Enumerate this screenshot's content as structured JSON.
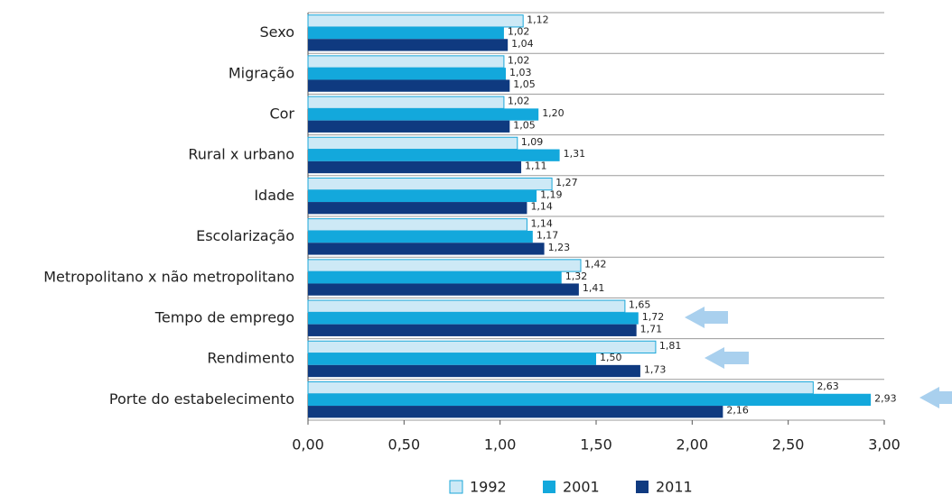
{
  "chart_data": {
    "type": "barh",
    "categories": [
      "Sexo",
      "Migração",
      "Cor",
      "Rural x urbano",
      "Idade",
      "Escolarização",
      "Metropolitano  x não metropolitano",
      "Tempo de emprego",
      "Rendimento",
      "Porte do estabelecimento"
    ],
    "series": [
      {
        "name": "1992",
        "color": "#cde9f6",
        "stroke": "#1aa7d9",
        "values": [
          1.12,
          1.02,
          1.02,
          1.09,
          1.27,
          1.14,
          1.42,
          1.65,
          1.81,
          2.63
        ],
        "value_labels": [
          "1,12",
          "1,02",
          "1,02",
          "1,09",
          "1,27",
          "1,14",
          "1,42",
          "1,65",
          "1,81",
          "2,63"
        ]
      },
      {
        "name": "2001",
        "color": "#13a8dc",
        "values": [
          1.02,
          1.03,
          1.2,
          1.31,
          1.19,
          1.17,
          1.32,
          1.72,
          1.5,
          2.93
        ],
        "value_labels": [
          "1,02",
          "1,03",
          "1,20",
          "1,31",
          "1,19",
          "1,17",
          "1,32",
          "1,72",
          "1,50",
          "2,93"
        ]
      },
      {
        "name": "2011",
        "color": "#0f3a80",
        "values": [
          1.04,
          1.05,
          1.05,
          1.11,
          1.14,
          1.23,
          1.41,
          1.71,
          1.73,
          2.16
        ],
        "value_labels": [
          "1,04",
          "1,05",
          "1,05",
          "1,11",
          "1,14",
          "1,23",
          "1,41",
          "1,71",
          "1,73",
          "2,16"
        ]
      }
    ],
    "xlim": [
      0,
      3
    ],
    "xticks": [
      {
        "value": 0,
        "label": "0,00"
      },
      {
        "value": 0.5,
        "label": "0,50"
      },
      {
        "value": 1,
        "label": "1,00"
      },
      {
        "value": 1.5,
        "label": "1,50"
      },
      {
        "value": 2,
        "label": "2,00"
      },
      {
        "value": 2.5,
        "label": "2,50"
      },
      {
        "value": 3,
        "label": "3,00"
      }
    ],
    "legend": "bottom"
  }
}
